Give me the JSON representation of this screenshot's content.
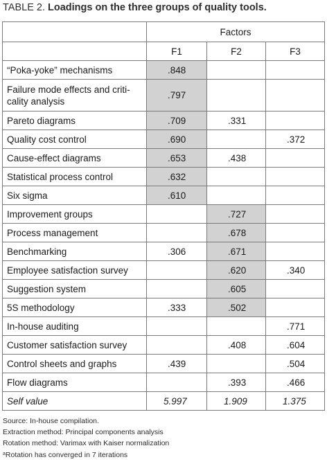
{
  "title": {
    "label": "TABLE 2.",
    "text": "Loadings on the three groups of quality tools."
  },
  "header": {
    "factors": "Factors",
    "columns": [
      "F1",
      "F2",
      "F3"
    ]
  },
  "rows": [
    {
      "name": "“Poka-yoke” mechanisms",
      "f1": ".848",
      "f2": "",
      "f3": ""
    },
    {
      "name": "Failure mode effects and criti-\ncality analysis",
      "f1": ".797",
      "f2": "",
      "f3": ""
    },
    {
      "name": "Pareto diagrams",
      "f1": ".709",
      "f2": ".331",
      "f3": ""
    },
    {
      "name": "Quality cost control",
      "f1": ".690",
      "f2": "",
      "f3": ".372"
    },
    {
      "name": "Cause-effect diagrams",
      "f1": ".653",
      "f2": ".438",
      "f3": ""
    },
    {
      "name": "Statistical process control",
      "f1": ".632",
      "f2": "",
      "f3": ""
    },
    {
      "name": "Six sigma",
      "f1": ".610",
      "f2": "",
      "f3": ""
    },
    {
      "name": "Improvement groups",
      "f1": "",
      "f2": ".727",
      "f3": ""
    },
    {
      "name": "Process management",
      "f1": "",
      "f2": ".678",
      "f3": ""
    },
    {
      "name": "Benchmarking",
      "f1": ".306",
      "f2": ".671",
      "f3": ""
    },
    {
      "name": "Employee satisfaction survey",
      "f1": "",
      "f2": ".620",
      "f3": ".340"
    },
    {
      "name": "Suggestion system",
      "f1": "",
      "f2": ".605",
      "f3": ""
    },
    {
      "name": "5S methodology",
      "f1": ".333",
      "f2": ".502",
      "f3": ""
    },
    {
      "name": "In-house auditing",
      "f1": "",
      "f2": "",
      "f3": ".771"
    },
    {
      "name": "Customer satisfaction survey",
      "f1": "",
      "f2": ".408",
      "f3": ".604"
    },
    {
      "name": "Control sheets and graphs",
      "f1": ".439",
      "f2": "",
      "f3": ".504"
    },
    {
      "name": "Flow diagrams",
      "f1": "",
      "f2": ".393",
      "f3": ".466"
    }
  ],
  "self_value": {
    "label": "Self value",
    "f1": "5.997",
    "f2": "1.909",
    "f3": "1.375"
  },
  "notes": {
    "source": "Source: In-house compilation.",
    "extraction": "Extraction method: Principal components analysis",
    "rotation": "Rotation method: Varimax with Kaiser normalization",
    "footnote_mark": "a",
    "footnote": "Rotation has converged in 7 iterations"
  },
  "colors": {
    "highlight": "#d2d2d2",
    "border": "#7a7a7a"
  }
}
